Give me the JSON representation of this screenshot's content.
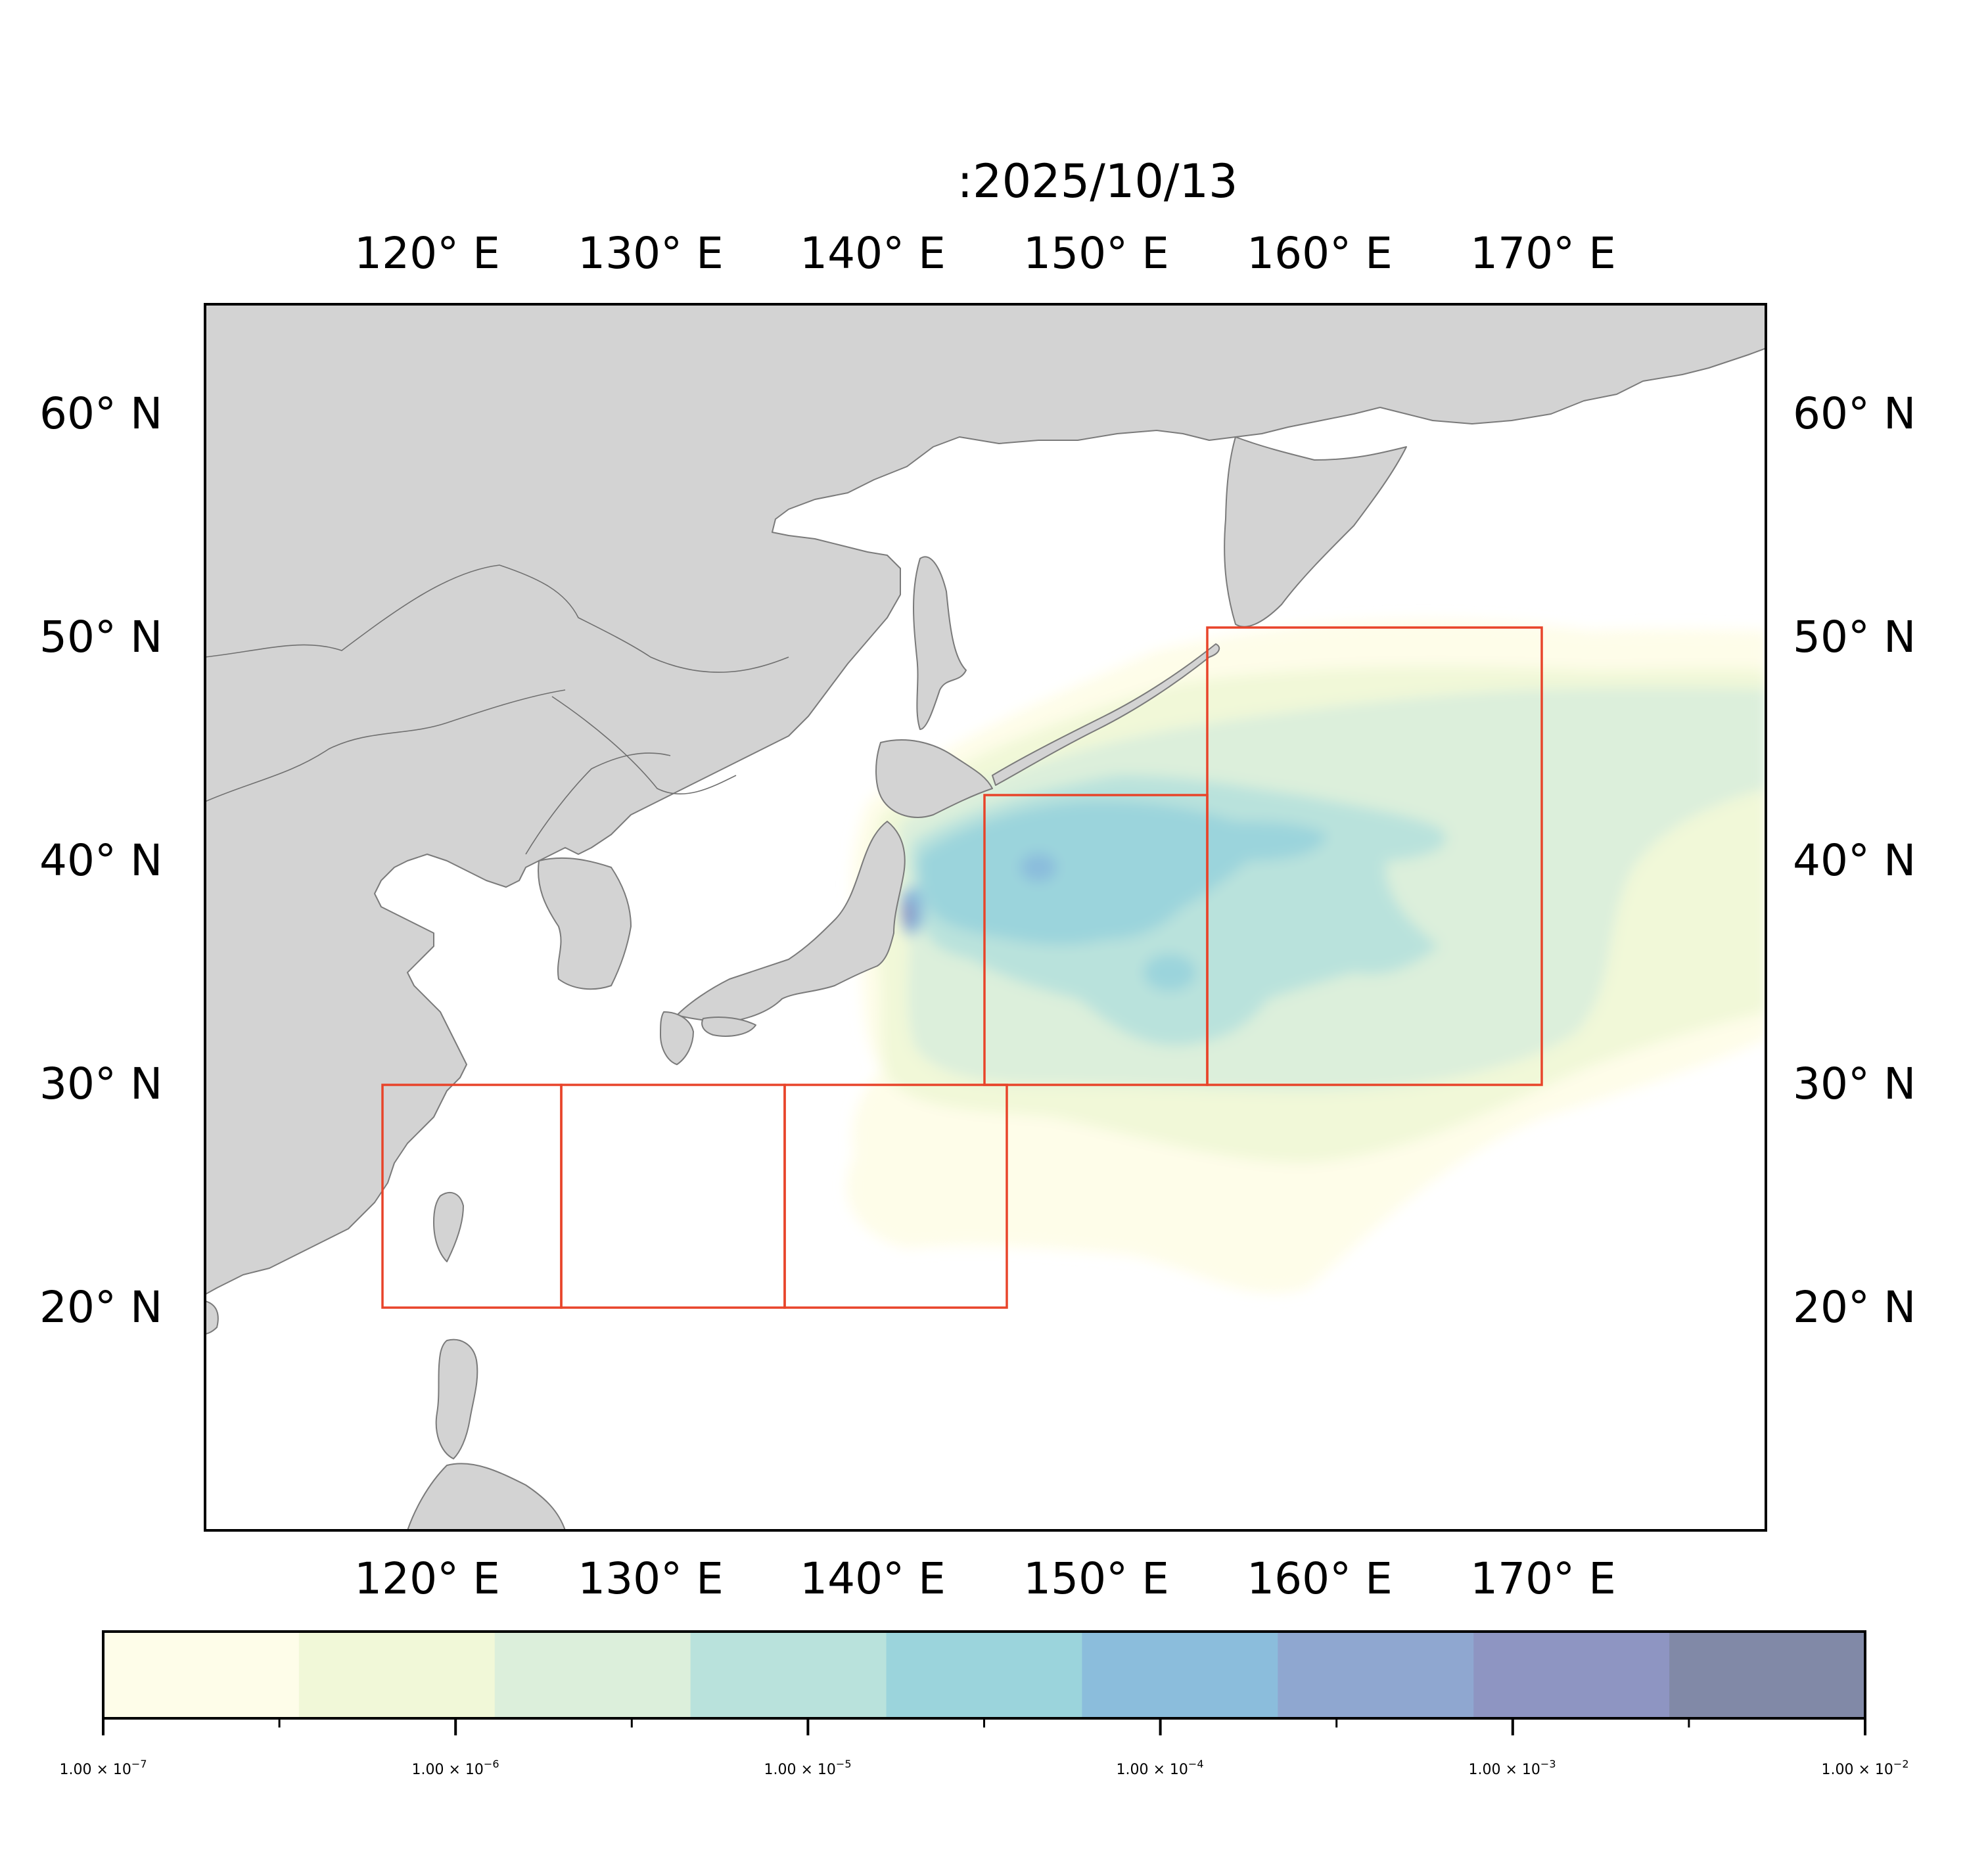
{
  "title": ":2025/10/13",
  "map": {
    "lon_ticks": [
      "120° E",
      "130° E",
      "140° E",
      "150° E",
      "160° E",
      "170° E"
    ],
    "lat_ticks": [
      "60° N",
      "50° N",
      "40° N",
      "30° N",
      "20° N"
    ],
    "extent": {
      "lon": [
        112,
        182
      ],
      "lat": [
        10,
        65
      ]
    },
    "land_color": "#d3d3d3",
    "coast_color": "#7a7a7a",
    "region_box_color": "#e8442a",
    "regions": [
      {
        "lon": [
          118,
          126
        ],
        "lat": [
          20,
          30
        ]
      },
      {
        "lon": [
          126,
          136
        ],
        "lat": [
          20,
          30
        ]
      },
      {
        "lon": [
          136,
          146
        ],
        "lat": [
          20,
          30
        ]
      },
      {
        "lon": [
          145,
          155
        ],
        "lat": [
          30,
          43
        ]
      },
      {
        "lon": [
          155,
          170
        ],
        "lat": [
          30,
          50.5
        ]
      }
    ]
  },
  "colorbar": {
    "scale": "log",
    "range": [
      1e-07,
      0.01
    ],
    "colors": [
      "#fefde9",
      "#f1f8d8",
      "#dcefdb",
      "#b9e2dc",
      "#9bd4dc",
      "#8bbddc",
      "#8fa7d0",
      "#8e95c2",
      "#8189a7"
    ],
    "tick_labels": [
      {
        "mant": "1.00",
        "exp": "−7"
      },
      {
        "mant": "1.00",
        "exp": "−6"
      },
      {
        "mant": "1.00",
        "exp": "−5"
      },
      {
        "mant": "1.00",
        "exp": "−4"
      },
      {
        "mant": "1.00",
        "exp": "−3"
      },
      {
        "mant": "1.00",
        "exp": "−2"
      }
    ]
  }
}
